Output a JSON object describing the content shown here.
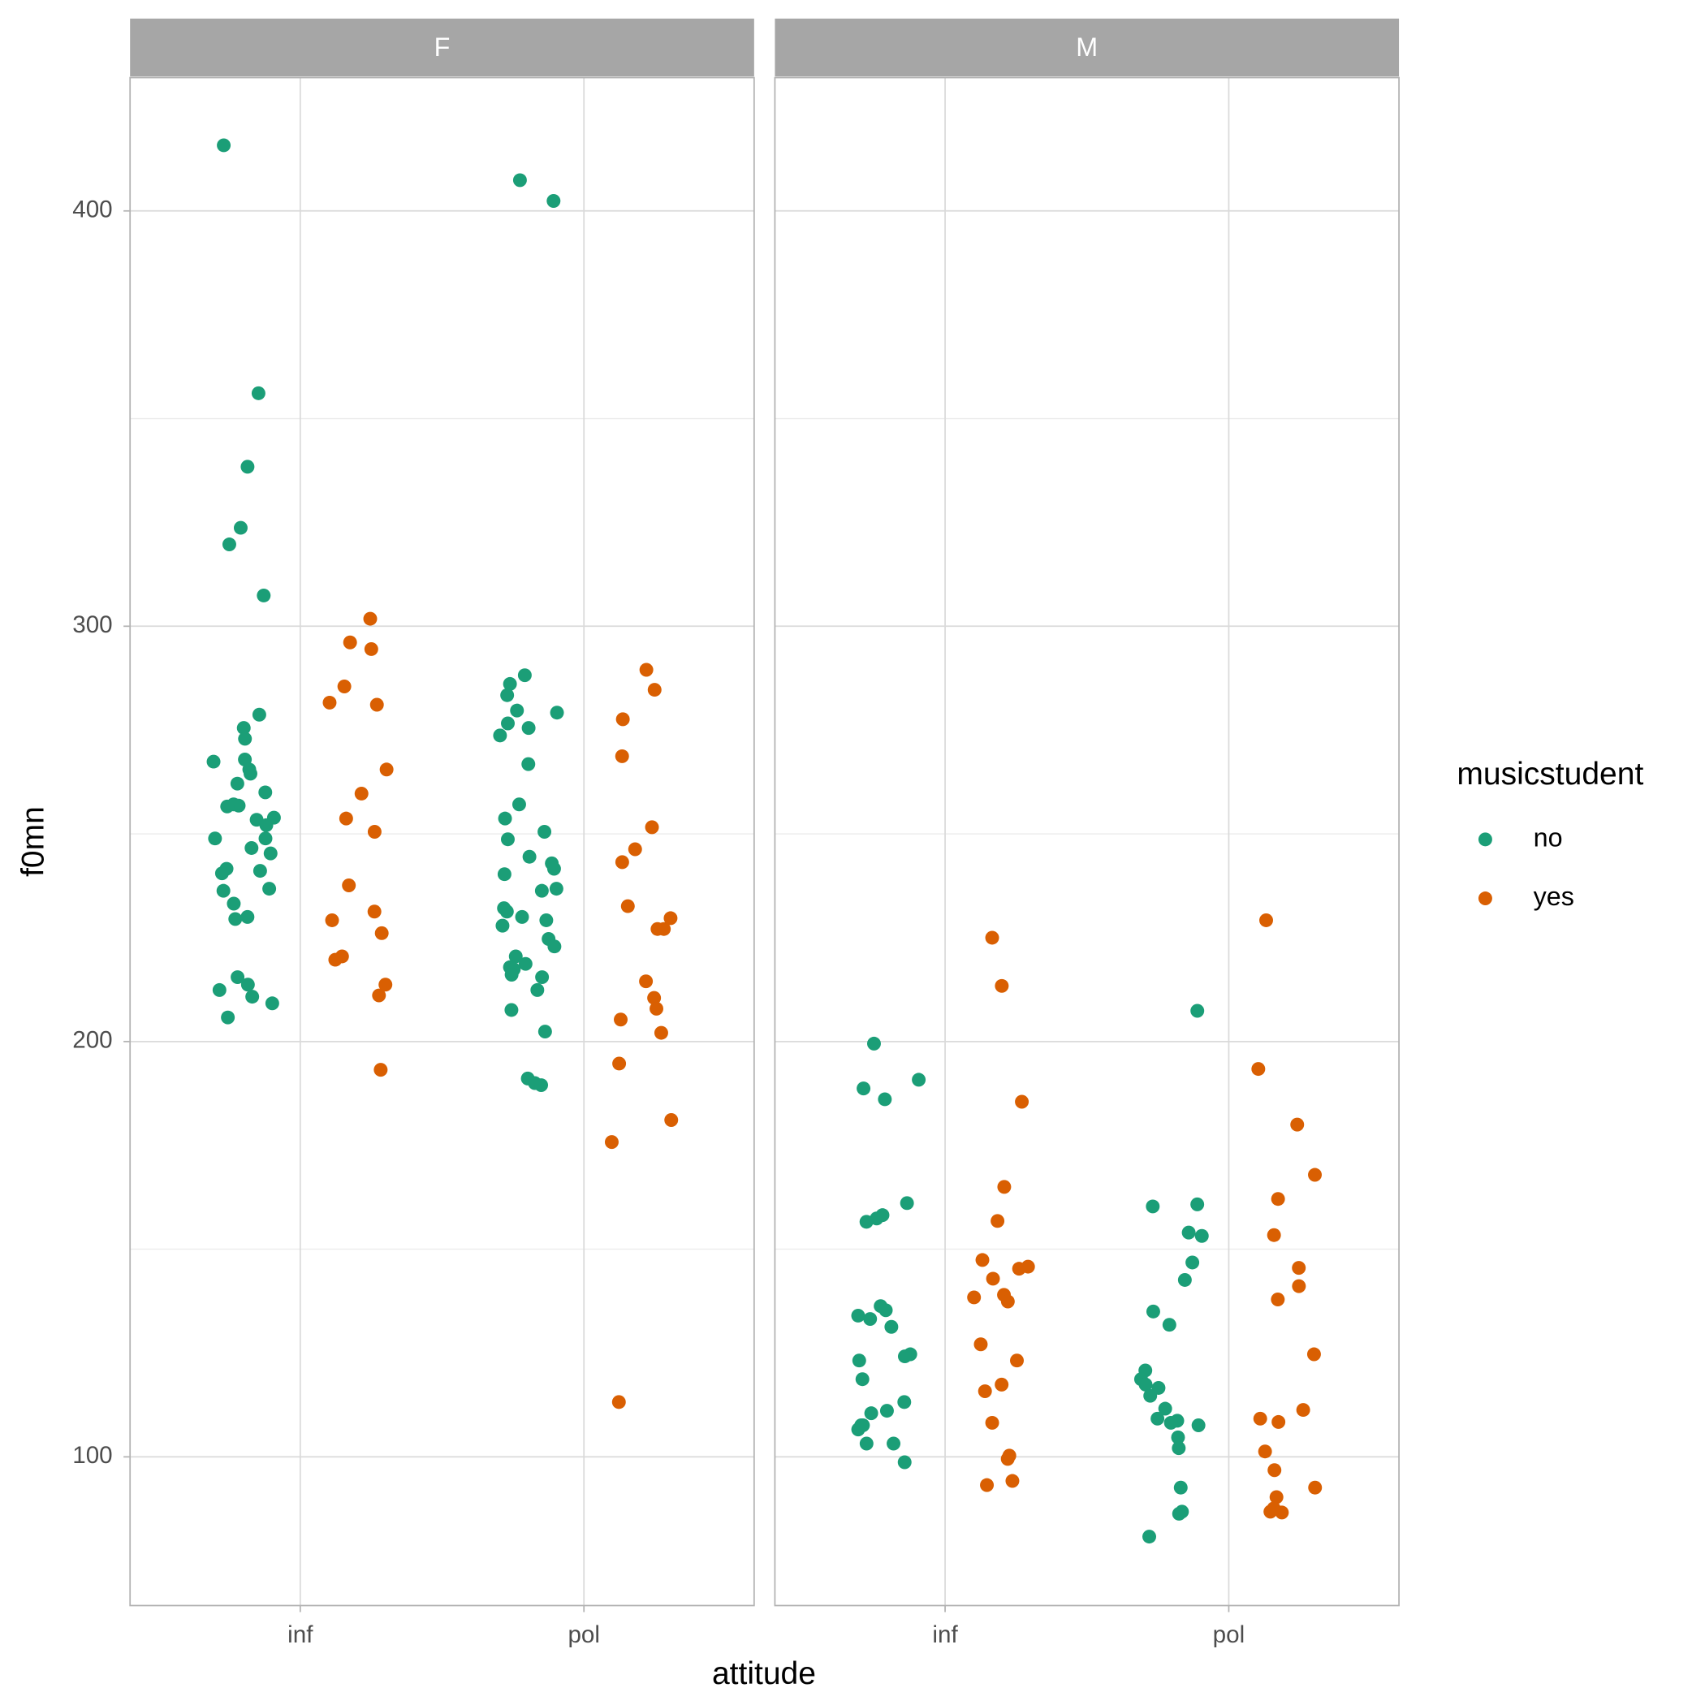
{
  "chart_data": {
    "type": "scatter",
    "xlabel": "attitude",
    "ylabel": "f0mn",
    "legend_title": "musicstudent",
    "legend": "right",
    "grid": true,
    "facets": [
      "F",
      "M"
    ],
    "categories": [
      "inf",
      "pol"
    ],
    "ylim": [
      64.2,
      432.1
    ],
    "yticks": [
      100,
      200,
      300,
      400
    ],
    "minor_yticks": [
      150,
      250,
      350
    ],
    "series": [
      {
        "name": "no",
        "color": "#1b9e77",
        "values": [
          [
            [
              415.8,
              356.1,
              338.4,
              323.7,
              319.7,
              307.4,
              278.7,
              275.5,
              272.9,
              267.9,
              267.4,
              265.5,
              264.5,
              262.1,
              260.0,
              257.1,
              256.8,
              256.6,
              253.9,
              253.4,
              252.1,
              248.9,
              248.9,
              246.6,
              245.3,
              241.6,
              241.1,
              240.5,
              236.8,
              236.3,
              233.2,
              230.0,
              229.5,
              215.5,
              213.7,
              212.4,
              210.8,
              209.2,
              205.8
            ],
            [
              407.4,
              402.4,
              288.2,
              286.1,
              283.4,
              279.2,
              279.7,
              276.6,
              275.5,
              273.7,
              266.8,
              257.1,
              253.7,
              250.5,
              248.7,
              244.5,
              242.9,
              241.6,
              240.3,
              236.8,
              236.3,
              232.1,
              231.3,
              230.0,
              229.2,
              227.9,
              224.7,
              222.9,
              220.5,
              218.7,
              217.9,
              217.4,
              216.1,
              215.5,
              212.4,
              207.6,
              202.4,
              191.1,
              190.0,
              189.5
            ]
          ],
          [
            [
              199.5,
              190.8,
              188.7,
              186.1,
              161.1,
              158.2,
              157.4,
              156.6,
              136.3,
              135.3,
              134.0,
              133.2,
              131.3,
              124.7,
              124.2,
              123.2,
              118.7,
              113.2,
              111.1,
              110.5,
              107.6,
              107.6,
              106.6,
              103.2,
              103.2,
              98.7
            ],
            [
              207.4,
              160.8,
              160.3,
              154.0,
              153.2,
              146.8,
              142.6,
              135.0,
              131.8,
              120.8,
              118.7,
              117.4,
              116.6,
              114.7,
              111.6,
              109.2,
              108.7,
              108.2,
              107.6,
              104.7,
              102.1,
              92.6,
              86.8,
              86.3,
              80.8
            ]
          ]
        ]
      },
      {
        "name": "yes",
        "color": "#d95f02",
        "values": [
          [
            [
              301.8,
              296.1,
              294.5,
              285.5,
              281.6,
              281.1,
              265.5,
              259.7,
              253.7,
              250.5,
              237.6,
              231.3,
              229.2,
              226.1,
              220.5,
              219.7,
              213.7,
              211.1,
              193.2
            ],
            [
              289.5,
              284.7,
              277.6,
              268.7,
              251.6,
              246.3,
              243.2,
              232.6,
              229.7,
              227.1,
              227.1,
              214.5,
              210.5,
              207.9,
              205.3,
              202.1,
              194.7,
              181.1,
              175.8,
              113.2
            ]
          ],
          [
            [
              225.0,
              213.4,
              185.5,
              165.0,
              156.8,
              147.4,
              145.8,
              145.3,
              142.9,
              139.0,
              138.4,
              137.4,
              127.1,
              123.2,
              117.4,
              115.8,
              108.2,
              100.3,
              99.5,
              94.2,
              93.2
            ],
            [
              229.2,
              193.4,
              180.0,
              167.9,
              162.1,
              153.4,
              145.5,
              141.1,
              137.9,
              124.7,
              111.3,
              109.2,
              108.4,
              101.3,
              96.8,
              92.6,
              90.3,
              86.8,
              86.6,
              87.6
            ]
          ]
        ]
      }
    ]
  }
}
